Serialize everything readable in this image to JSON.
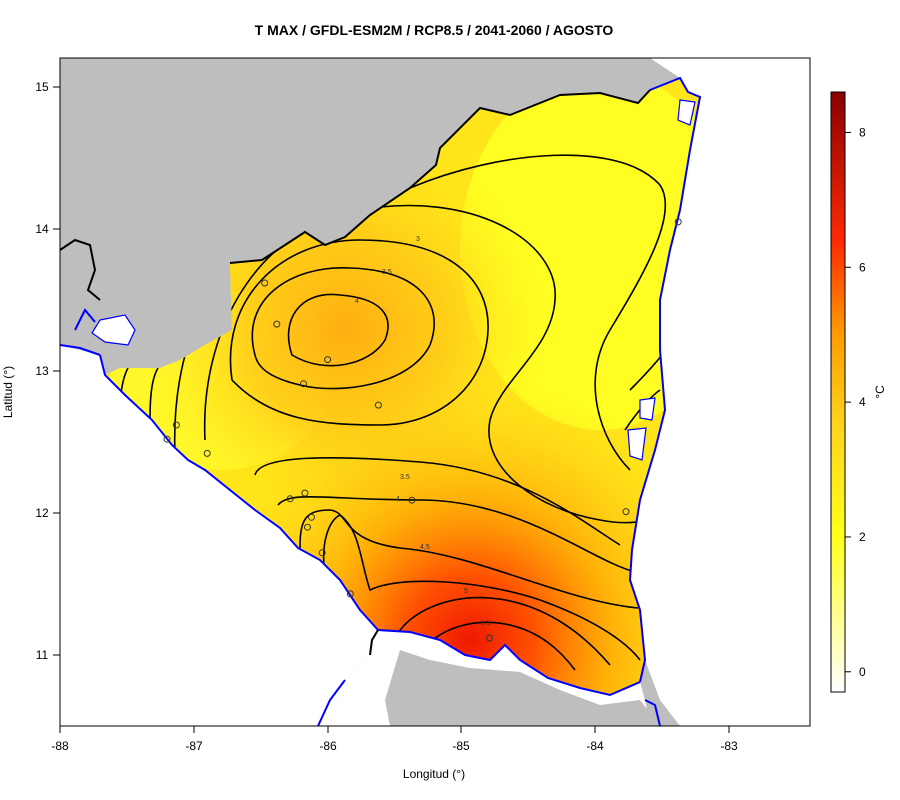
{
  "title": "T MAX / GFDL-ESM2M / RCP8.5 / 2041-2060 / AGOSTO",
  "xlabel": "Longitud (°)",
  "ylabel": "Latitud (°)",
  "x_ticks": [
    "-88",
    "-87",
    "-86",
    "-85",
    "-84",
    "-83"
  ],
  "y_ticks": [
    "11",
    "12",
    "13",
    "14",
    "15"
  ],
  "colorbar": {
    "unit": "°C",
    "ticks": [
      "0",
      "2",
      "4",
      "6",
      "8"
    ],
    "range": [
      -0.3,
      8.6
    ],
    "colors": [
      "#ffffff",
      "#ffff1a",
      "#ffd21a",
      "#ff9a00",
      "#ff2a00",
      "#8b0000"
    ]
  },
  "contour_labels": [
    "3",
    "3.5",
    "4",
    "3.5",
    "4",
    "4.5",
    "5",
    "5.5"
  ],
  "colors": {
    "land_outside": "#bebebe",
    "water": "#ffffff",
    "coastline": "#0000ff",
    "border": "#000000"
  },
  "stations_lonlat": [
    [
      -86.47,
      13.62
    ],
    [
      -86.38,
      13.33
    ],
    [
      -86.0,
      13.08
    ],
    [
      -86.18,
      12.91
    ],
    [
      -85.62,
      12.76
    ],
    [
      -87.13,
      12.62
    ],
    [
      -86.9,
      12.42
    ],
    [
      -87.2,
      12.52
    ],
    [
      -86.28,
      12.1
    ],
    [
      -86.17,
      12.14
    ],
    [
      -85.37,
      12.09
    ],
    [
      -86.12,
      11.97
    ],
    [
      -86.15,
      11.9
    ],
    [
      -86.04,
      11.72
    ],
    [
      -85.83,
      11.43
    ],
    [
      -84.79,
      11.12
    ],
    [
      -83.77,
      12.01
    ],
    [
      -83.38,
      14.05
    ]
  ]
}
